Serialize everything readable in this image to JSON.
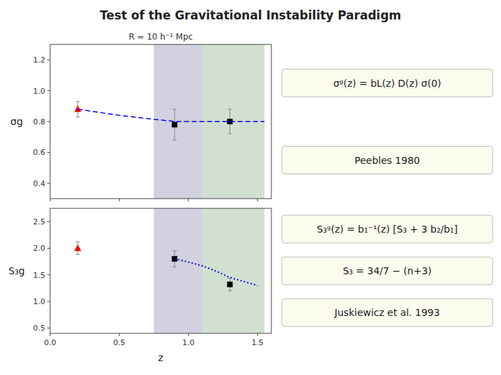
{
  "chart_data": [
    {
      "type": "scatter",
      "title": "Test of the Gravitational Instability Paradigm",
      "subtitle": "R = 10 h⁻¹ Mpc",
      "ylabel": "σg",
      "xlim": [
        0.0,
        1.6
      ],
      "xticks": [
        0,
        0.5,
        1,
        1.5
      ],
      "ylim": [
        0.3,
        1.3
      ],
      "yticks": [
        0.4,
        0.6,
        0.8,
        {
          "value": 1.0,
          "label": "1.0"
        },
        1.2
      ],
      "tick_labels": "y",
      "grid": false,
      "spans": [
        {
          "x": [
            0.75,
            1.1
          ],
          "color": "#9999bb"
        },
        {
          "x": [
            1.1,
            1.55
          ],
          "color": "#99bb99"
        }
      ],
      "series": [
        {
          "type": "scatter",
          "marker": "triangle",
          "color": "red",
          "x": [
            0.2
          ],
          "values": [
            0.88
          ],
          "errors": [
            0.05
          ]
        },
        {
          "type": "scatter",
          "marker": "square",
          "color": "black",
          "x": [
            0.9,
            1.3
          ],
          "values": [
            0.78,
            0.8
          ],
          "errors": [
            0.1,
            0.08
          ]
        },
        {
          "type": "line",
          "line_style": "dashed",
          "color": "blue",
          "x": [
            0.2,
            0.5,
            0.9,
            1.3,
            1.55
          ],
          "values": [
            0.88,
            0.84,
            0.8,
            0.8,
            0.8
          ]
        }
      ],
      "annotations": [
        "σᵍ(z) = bL(z) D(z) σ(0)",
        "Peebles 1980"
      ]
    },
    {
      "type": "scatter",
      "xlabel": "z",
      "ylabel": "S₃g",
      "xlim": [
        0.0,
        1.6
      ],
      "xticks": [
        {
          "value": 0,
          "label": "0.0"
        },
        {
          "value": 0.5,
          "label": "0.5"
        },
        {
          "value": 1,
          "label": "1.0"
        },
        {
          "value": 1.5,
          "label": "1.5"
        }
      ],
      "ylim": [
        0.4,
        2.75
      ],
      "yticks": [
        0.5,
        {
          "value": 1.0,
          "label": "1.0"
        },
        1.5,
        {
          "value": 2.0,
          "label": "2.0"
        },
        2.5
      ],
      "grid": false,
      "spans": [
        {
          "x": [
            0.75,
            1.1
          ],
          "color": "#9999bb"
        },
        {
          "x": [
            1.1,
            1.55
          ],
          "color": "#99bb99"
        }
      ],
      "series": [
        {
          "type": "scatter",
          "marker": "triangle",
          "color": "red",
          "x": [
            0.2
          ],
          "values": [
            2.0
          ],
          "errors": [
            0.12
          ]
        },
        {
          "type": "scatter",
          "marker": "square",
          "color": "black",
          "x": [
            0.9,
            1.3
          ],
          "values": [
            1.8,
            1.32
          ],
          "errors": [
            0.15,
            0.12
          ]
        },
        {
          "type": "line",
          "line_style": "dotted",
          "color": "blue",
          "x": [
            0.9,
            1.0,
            1.1,
            1.2,
            1.3,
            1.5
          ],
          "values": [
            1.8,
            1.74,
            1.67,
            1.57,
            1.45,
            1.3
          ]
        }
      ],
      "annotations": [
        "S₃ᵍ(z) = b₁⁻¹(z) [S₃ + 3 b₂/b₁]",
        "S₃ = 34/7 − (n+3)",
        "Juskiewicz et al.  1993"
      ]
    }
  ]
}
